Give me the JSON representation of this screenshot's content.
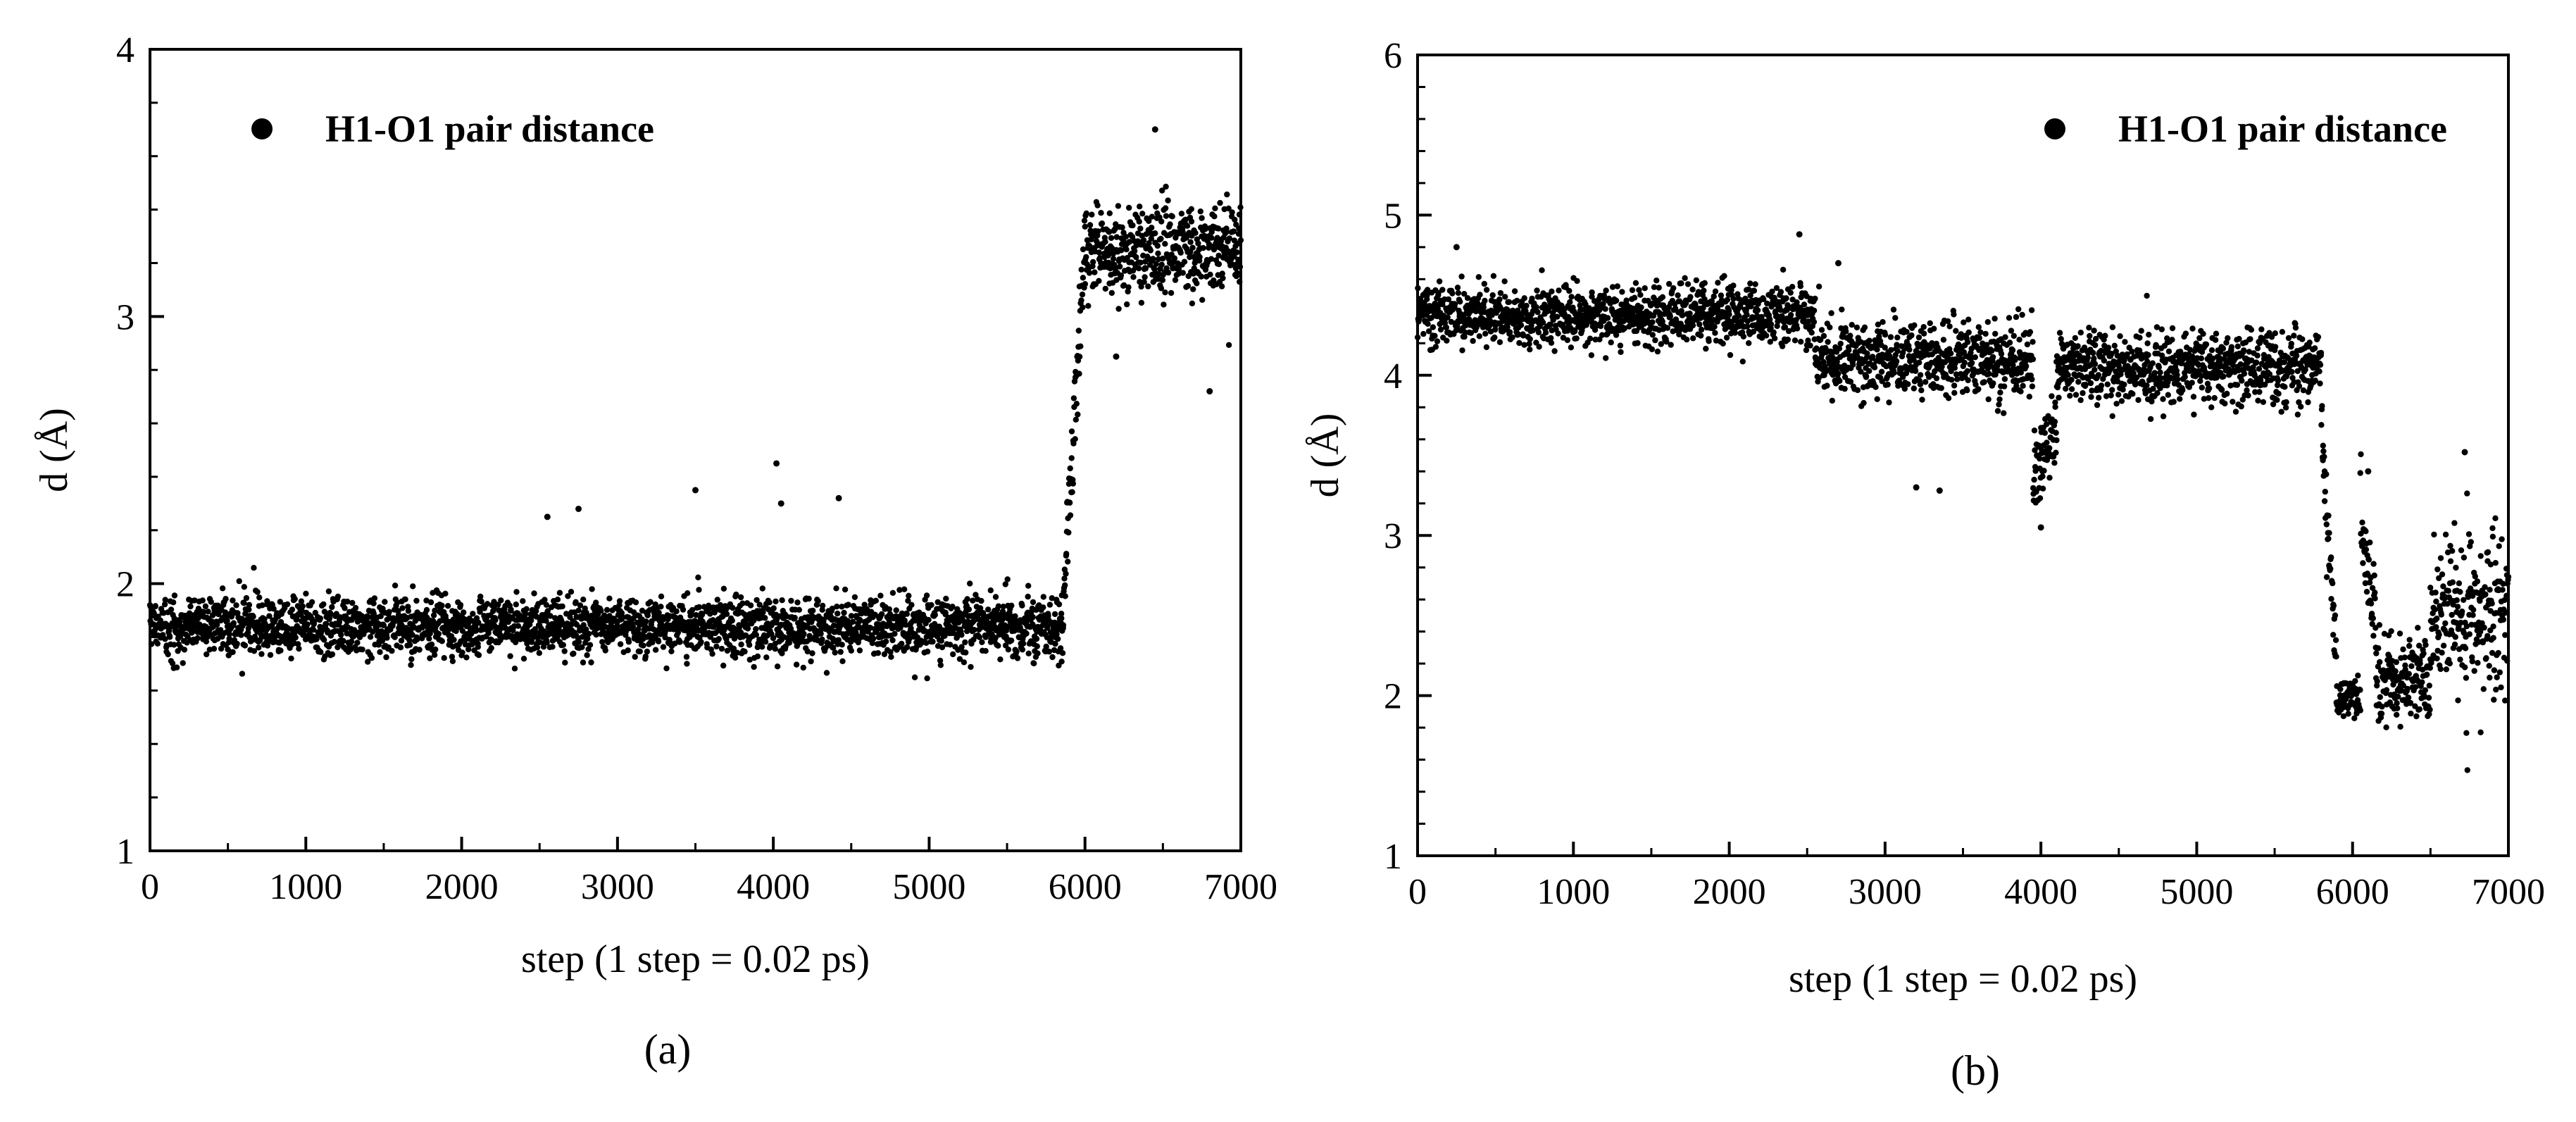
{
  "chart_data": [
    {
      "panel_label": "(a)",
      "type": "scatter",
      "xlabel": "step (1 step = 0.02 ps)",
      "ylabel": "d (Å)",
      "xlim": [
        0,
        7000
      ],
      "ylim": [
        1,
        4
      ],
      "x_ticks": [
        "0",
        "1000",
        "2000",
        "3000",
        "4000",
        "5000",
        "6000",
        "7000"
      ],
      "y_ticks": [
        "1",
        "2",
        "3",
        "4"
      ],
      "x_tick_values": [
        0,
        1000,
        2000,
        3000,
        4000,
        5000,
        6000,
        7000
      ],
      "y_tick_values": [
        1,
        2,
        3,
        4
      ],
      "legend": {
        "position": "top-left",
        "entries": [
          "H1-O1 pair distance"
        ]
      },
      "series": [
        {
          "name": "H1-O1 pair distance",
          "marker": "circle",
          "color": "#000000",
          "segments": [
            {
              "x_start": 0,
              "x_end": 5850,
              "mean": 1.84,
              "spread": 0.1
            },
            {
              "x_start": 5850,
              "x_end": 6000,
              "mean_start": 1.85,
              "mean_end": 3.25,
              "spread": 0.15
            },
            {
              "x_start": 6000,
              "x_end": 7000,
              "mean": 3.25,
              "spread": 0.15
            }
          ],
          "outliers": [
            {
              "x": 2550,
              "y": 2.25
            },
            {
              "x": 2750,
              "y": 2.28
            },
            {
              "x": 3500,
              "y": 2.35
            },
            {
              "x": 4020,
              "y": 2.45
            },
            {
              "x": 4050,
              "y": 2.3
            },
            {
              "x": 4420,
              "y": 2.32
            },
            {
              "x": 6450,
              "y": 3.7
            },
            {
              "x": 6800,
              "y": 2.72
            },
            {
              "x": 6200,
              "y": 2.85
            }
          ]
        }
      ]
    },
    {
      "panel_label": "(b)",
      "type": "scatter",
      "xlabel": "step (1 step = 0.02 ps)",
      "ylabel": "d (Å)",
      "xlim": [
        0,
        7000
      ],
      "ylim": [
        1,
        6
      ],
      "x_ticks": [
        "0",
        "1000",
        "2000",
        "3000",
        "4000",
        "5000",
        "6000",
        "7000"
      ],
      "y_ticks": [
        "1",
        "2",
        "3",
        "4",
        "5",
        "6"
      ],
      "x_tick_values": [
        0,
        1000,
        2000,
        3000,
        4000,
        5000,
        6000,
        7000
      ],
      "y_tick_values": [
        1,
        2,
        3,
        4,
        5,
        6
      ],
      "legend": {
        "position": "top-right",
        "entries": [
          "H1-O1 pair distance"
        ]
      },
      "series": [
        {
          "name": "H1-O1 pair distance",
          "marker": "circle",
          "color": "#000000",
          "segments": [
            {
              "x_start": 0,
              "x_end": 2550,
              "mean": 4.38,
              "spread": 0.16
            },
            {
              "x_start": 2550,
              "x_end": 3950,
              "mean": 4.1,
              "spread": 0.22
            },
            {
              "x_start": 3950,
              "x_end": 4100,
              "mean_start": 3.4,
              "mean_end": 3.6,
              "spread": 0.25
            },
            {
              "x_start": 4100,
              "x_end": 5800,
              "mean": 4.05,
              "spread": 0.2
            },
            {
              "x_start": 5800,
              "x_end": 5900,
              "mean_start": 3.8,
              "mean_end": 2.0,
              "spread": 0.25
            },
            {
              "x_start": 5900,
              "x_end": 6050,
              "mean": 1.98,
              "spread": 0.1
            },
            {
              "x_start": 6050,
              "x_end": 6150,
              "mean_start": 3.1,
              "mean_end": 2.4,
              "spread": 0.3
            },
            {
              "x_start": 6150,
              "x_end": 6500,
              "mean": 2.1,
              "spread": 0.25
            },
            {
              "x_start": 6500,
              "x_end": 7000,
              "mean": 2.5,
              "spread": 0.45
            }
          ],
          "outliers": [
            {
              "x": 2450,
              "y": 4.88
            },
            {
              "x": 250,
              "y": 4.8
            },
            {
              "x": 2700,
              "y": 4.7
            },
            {
              "x": 3200,
              "y": 3.3
            },
            {
              "x": 3350,
              "y": 3.28
            },
            {
              "x": 4000,
              "y": 3.05
            },
            {
              "x": 6100,
              "y": 3.4
            },
            {
              "x": 6720,
              "y": 3.52
            }
          ]
        }
      ]
    }
  ]
}
